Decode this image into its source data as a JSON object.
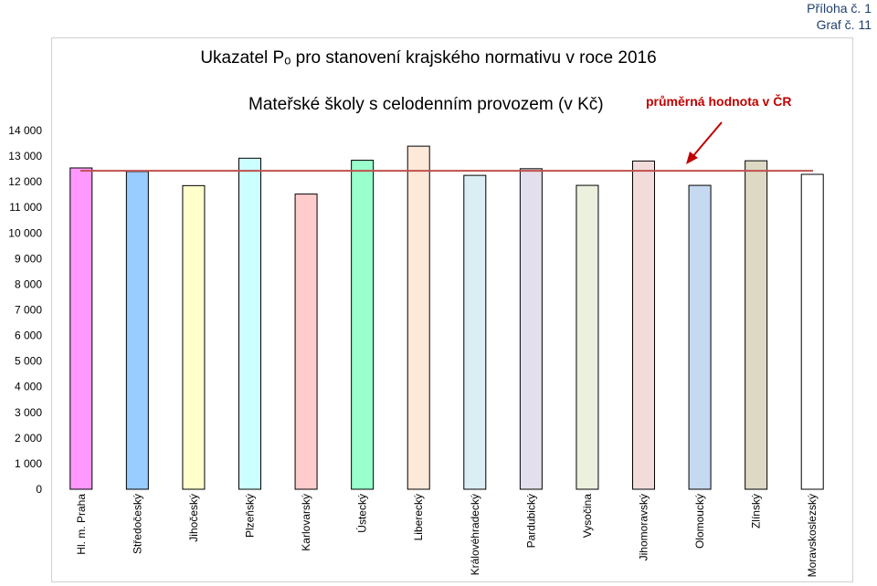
{
  "annex_label": "Příloha č. 1",
  "graph_label": "Graf č. 11",
  "chart_data": {
    "type": "bar",
    "title": "Ukazatel Pₒ pro stanovení krajského normativu v roce 2016",
    "subtitle": "Mateřské školy s celodenním provozem (v Kč)",
    "average_label": "průměrná hodnota v ČR",
    "average_value": 12430,
    "ylim": [
      0,
      14000
    ],
    "yticks": [
      "0",
      "1 000",
      "2 000",
      "3 000",
      "4 000",
      "5 000",
      "6 000",
      "7 000",
      "8 000",
      "9 000",
      "10 000",
      "11 000",
      "12 000",
      "13 000",
      "14 000"
    ],
    "grid": false,
    "categories": [
      "Hl. m. Praha",
      "Středočeský",
      "Jihočeský",
      "Plzeňský",
      "Karlovarský",
      "Ústecký",
      "Liberecký",
      "Královéhradecký",
      "Pardubický",
      "Vysočina",
      "Jihomoravský",
      "Olomoucký",
      "Zlínský",
      "Moravskoslezský"
    ],
    "values": [
      12540,
      12400,
      11850,
      12920,
      11520,
      12840,
      13390,
      12250,
      12510,
      11860,
      12810,
      11860,
      12820,
      12290
    ],
    "colors": [
      "#ff99ff",
      "#99ccff",
      "#ffffcc",
      "#ccffff",
      "#ffcccc",
      "#99ffcc",
      "#fde9d9",
      "#daeef3",
      "#e4dfec",
      "#ebf1de",
      "#f2dcdb",
      "#c5d9f1",
      "#ddd9c4",
      "#ffffff"
    ],
    "average_line_color": "#c0504d",
    "arrow_color": "#c00000"
  }
}
